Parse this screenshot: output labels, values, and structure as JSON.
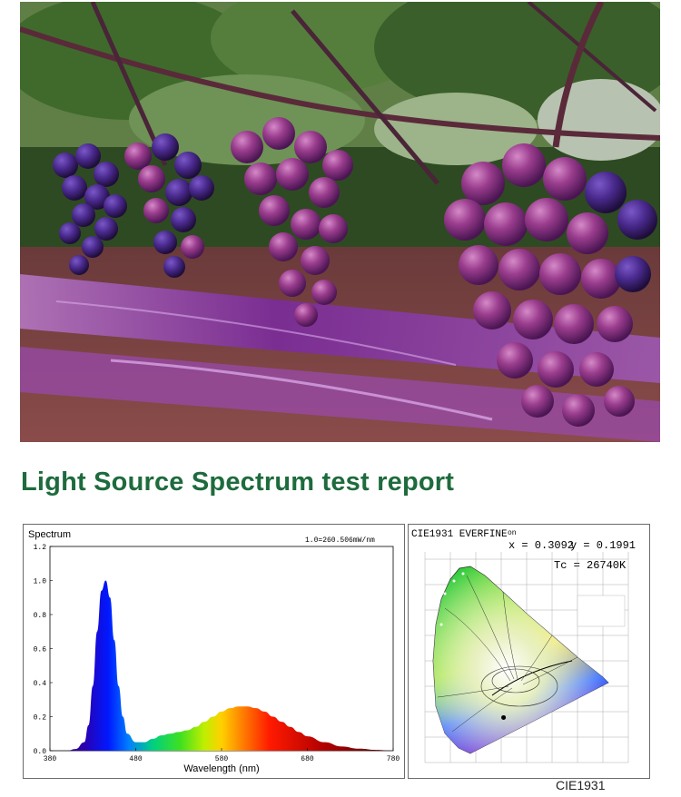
{
  "heading": "Light Source Spectrum test report",
  "chart_data": [
    {
      "type": "area",
      "title": "Spectrum",
      "annotation": "1.0=260.506mW/nm",
      "xlabel": "Wavelength (nm)",
      "ylabel": "",
      "xlim": [
        380,
        780
      ],
      "ylim": [
        0,
        1.2
      ],
      "x_ticks": [
        380,
        480,
        580,
        680,
        780
      ],
      "y_ticks": [
        "0.0",
        "0.2",
        "0.4",
        "0.6",
        "0.8",
        "1.0",
        "1.2"
      ],
      "grid": false,
      "x": [
        380,
        400,
        410,
        420,
        425,
        430,
        435,
        440,
        445,
        450,
        455,
        460,
        465,
        470,
        480,
        490,
        500,
        510,
        520,
        530,
        540,
        550,
        560,
        570,
        580,
        590,
        600,
        610,
        620,
        630,
        640,
        650,
        660,
        670,
        680,
        700,
        720,
        740,
        760,
        780
      ],
      "values": [
        0.0,
        0.0,
        0.01,
        0.05,
        0.15,
        0.38,
        0.7,
        0.94,
        1.0,
        0.9,
        0.65,
        0.38,
        0.2,
        0.1,
        0.05,
        0.05,
        0.07,
        0.09,
        0.1,
        0.11,
        0.12,
        0.14,
        0.17,
        0.2,
        0.23,
        0.25,
        0.26,
        0.26,
        0.25,
        0.23,
        0.2,
        0.17,
        0.14,
        0.11,
        0.085,
        0.05,
        0.025,
        0.012,
        0.005,
        0.0
      ]
    },
    {
      "type": "scatter",
      "title": "CIE1931 EVERFINE",
      "title_suffix": "on",
      "readout": {
        "x_label": "x = 0.3092",
        "y_label": "y = 0.1991",
        "tc_label": "Tc = 26740K"
      },
      "points": [
        {
          "x": 0.3092,
          "y": 0.1991
        }
      ],
      "caption": "CIE1931"
    }
  ],
  "colors": {
    "heading": "#1e6b3d",
    "panel_border": "#6b6b6b",
    "photo_purple": "#7a2aa0"
  },
  "photo": {
    "subject": "grape-clusters-under-purple-grow-light"
  }
}
